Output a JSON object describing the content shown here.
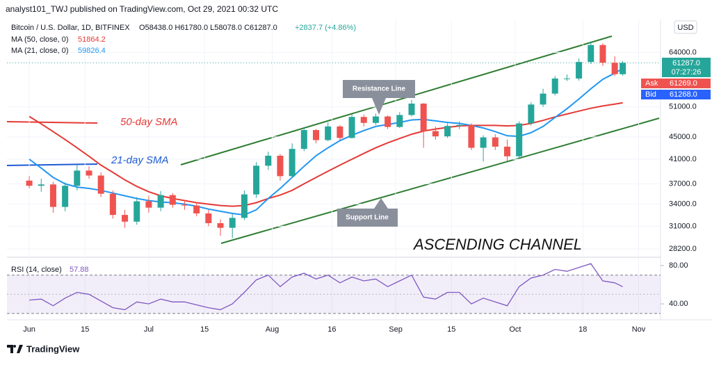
{
  "header": {
    "publisher": "analyst101_TWJ published on TradingView.com, Oct 29, 2021 00:32 UTC"
  },
  "footer": {
    "brand": "TradingView"
  },
  "chart_data": [
    {
      "type": "candlestick",
      "title": "Bitcoin / U.S. Dollar, 1D, BITFINEX",
      "ohlc_text": "O58438.0 H61780.0 L58078.0 C61287.0",
      "change_text": "+2837.7 (+4.86%)",
      "x": [
        0,
        3,
        6,
        9,
        12,
        15,
        18,
        21,
        24,
        27,
        30,
        33,
        36,
        39,
        42,
        45,
        48,
        51,
        54,
        57,
        60,
        63,
        66,
        69,
        72,
        75,
        78,
        81,
        84,
        87,
        90,
        93,
        96,
        99,
        102,
        105,
        108,
        111,
        114,
        117,
        120,
        123,
        126,
        129,
        132,
        135,
        138,
        141,
        144,
        147,
        149
      ],
      "open": [
        37500,
        36700,
        36900,
        33600,
        36700,
        39100,
        38300,
        35500,
        32500,
        31600,
        34400,
        33500,
        35300,
        33900,
        33800,
        32700,
        31400,
        30800,
        32100,
        35400,
        39900,
        41600,
        38200,
        42800,
        46300,
        44400,
        47000,
        44800,
        48900,
        47700,
        49000,
        46900,
        49300,
        51700,
        46100,
        45100,
        47100,
        47300,
        43000,
        44900,
        43200,
        41500,
        47600,
        51500,
        53900,
        57400,
        57400,
        61500,
        66000,
        61300,
        58438
      ],
      "high": [
        38200,
        37800,
        37300,
        37200,
        40000,
        39800,
        38800,
        36000,
        33200,
        35000,
        35200,
        35900,
        35600,
        34600,
        34300,
        33200,
        31900,
        32700,
        36000,
        40500,
        42300,
        41900,
        43800,
        46900,
        46500,
        47800,
        47300,
        49500,
        49400,
        49600,
        49200,
        49900,
        52500,
        51800,
        47000,
        47600,
        48000,
        47600,
        45300,
        45500,
        44500,
        48000,
        52000,
        55000,
        58000,
        58400,
        62400,
        67000,
        66500,
        63000,
        61780
      ],
      "low": [
        36300,
        35800,
        32800,
        33000,
        36000,
        37800,
        35000,
        32000,
        30800,
        31200,
        32800,
        33000,
        33500,
        33200,
        32300,
        31000,
        29800,
        29500,
        31800,
        34900,
        39200,
        37500,
        38000,
        42400,
        43800,
        44200,
        44300,
        44700,
        47000,
        47300,
        46500,
        46700,
        49000,
        43000,
        44500,
        44800,
        46500,
        42600,
        40600,
        42600,
        40700,
        41200,
        47200,
        51000,
        53500,
        56800,
        56900,
        61000,
        60500,
        58000,
        58078
      ],
      "close": [
        36700,
        36900,
        33600,
        36700,
        39100,
        38300,
        35500,
        32500,
        31600,
        34400,
        33500,
        35300,
        33900,
        33800,
        32700,
        31400,
        30800,
        32100,
        35400,
        39900,
        41600,
        38200,
        42800,
        46300,
        44400,
        47000,
        44800,
        48900,
        47700,
        49000,
        46900,
        49300,
        51700,
        46100,
        45100,
        47100,
        47300,
        43000,
        44900,
        43200,
        41500,
        47600,
        51500,
        53900,
        57400,
        57400,
        61500,
        66000,
        61300,
        58449.3,
        61287
      ],
      "up_color": "#26a69a",
      "down_color": "#ef5350",
      "series": [
        {
          "name": "MA (50, close, 0)",
          "last_label": "51864.2",
          "color": "#e53935",
          "values": [
            49000,
            47500,
            46000,
            44500,
            43000,
            41500,
            40000,
            38800,
            37600,
            36600,
            35800,
            35200,
            34800,
            34500,
            34200,
            34000,
            33800,
            33700,
            33800,
            34200,
            34800,
            35300,
            36000,
            37000,
            38000,
            39000,
            40000,
            41000,
            42000,
            43000,
            43900,
            44700,
            45500,
            46100,
            46500,
            46800,
            47100,
            47200,
            47200,
            47200,
            47100,
            47200,
            47600,
            48200,
            48900,
            49500,
            50100,
            50700,
            51200,
            51600,
            51864.2
          ]
        },
        {
          "name": "MA (21, close, 0)",
          "last_label": "59826.4",
          "color": "#2196f3",
          "values": [
            41000,
            39500,
            38000,
            37000,
            36500,
            36300,
            36000,
            35600,
            35200,
            34800,
            34500,
            34300,
            34200,
            34000,
            33700,
            33300,
            33000,
            32700,
            32500,
            33200,
            34800,
            36300,
            38000,
            39800,
            41600,
            43000,
            44300,
            45300,
            46200,
            47000,
            47400,
            47800,
            48300,
            48400,
            48100,
            47800,
            47600,
            47200,
            46700,
            46000,
            45200,
            45100,
            45800,
            47000,
            48800,
            50600,
            52700,
            55000,
            57200,
            58700,
            59826.4
          ]
        }
      ],
      "xlim": [
        -5.6,
        158.5
      ],
      "xticks": [
        {
          "value": 0,
          "label": "Jun"
        },
        {
          "value": 14,
          "label": "15"
        },
        {
          "value": 30,
          "label": "Jul"
        },
        {
          "value": 44,
          "label": "15"
        },
        {
          "value": 61,
          "label": "Aug"
        },
        {
          "value": 76,
          "label": "16"
        },
        {
          "value": 92,
          "label": "Sep"
        },
        {
          "value": 106,
          "label": "15"
        },
        {
          "value": 122,
          "label": "Oct"
        },
        {
          "value": 139,
          "label": "18"
        },
        {
          "value": 153,
          "label": "Nov"
        }
      ],
      "ylim": [
        27400,
        73000
      ],
      "log_scale": true,
      "grid": true,
      "yticks": [
        {
          "value": 28200,
          "label": "28200.0"
        },
        {
          "value": 31000,
          "label": "31000.0"
        },
        {
          "value": 34000,
          "label": "34000.0"
        },
        {
          "value": 37000,
          "label": "37000.0"
        },
        {
          "value": 41000,
          "label": "41000.0"
        },
        {
          "value": 45000,
          "label": "45000.0"
        },
        {
          "value": 51000,
          "label": "51000.0"
        },
        {
          "value": 64000,
          "label": "64000.0"
        }
      ],
      "price_scale": {
        "currency": "USD",
        "last_price": "61287.0",
        "countdown": "07:27:26",
        "ask_label": "Ask",
        "ask": "61269.0",
        "bid_label": "Bid",
        "bid": "61268.0"
      },
      "annotations": {
        "sma50": "50-day SMA",
        "sma21": "21-day SMA",
        "resistance": "Resistance Line",
        "support": "Support Line",
        "pattern": "ASCENDING CHANNEL"
      }
    },
    {
      "type": "line",
      "name": "RSI (14, close)",
      "last_label": "57.88",
      "color": "#7e57c2",
      "x": [
        0,
        3,
        6,
        9,
        12,
        15,
        18,
        21,
        24,
        27,
        30,
        33,
        36,
        39,
        42,
        45,
        48,
        51,
        54,
        57,
        60,
        63,
        66,
        69,
        72,
        75,
        78,
        81,
        84,
        87,
        90,
        93,
        96,
        99,
        102,
        105,
        108,
        111,
        114,
        117,
        120,
        123,
        126,
        129,
        132,
        135,
        138,
        141,
        144,
        147,
        149
      ],
      "values": [
        44,
        45,
        38,
        46,
        52,
        50,
        43,
        36,
        34,
        42,
        40,
        45,
        42,
        42,
        39,
        36,
        34,
        40,
        52,
        65,
        70,
        58,
        68,
        72,
        66,
        70,
        62,
        68,
        64,
        66,
        58,
        64,
        70,
        47,
        45,
        52,
        52,
        40,
        46,
        42,
        38,
        58,
        67,
        70,
        76,
        74,
        78,
        82,
        64,
        62,
        57.88
      ],
      "band": [
        30,
        70
      ],
      "midline": 50,
      "ylim": [
        27,
        86.5
      ],
      "yticks": [
        {
          "value": 40,
          "label": "40.00"
        },
        {
          "value": 80,
          "label": "80.00"
        }
      ]
    }
  ]
}
